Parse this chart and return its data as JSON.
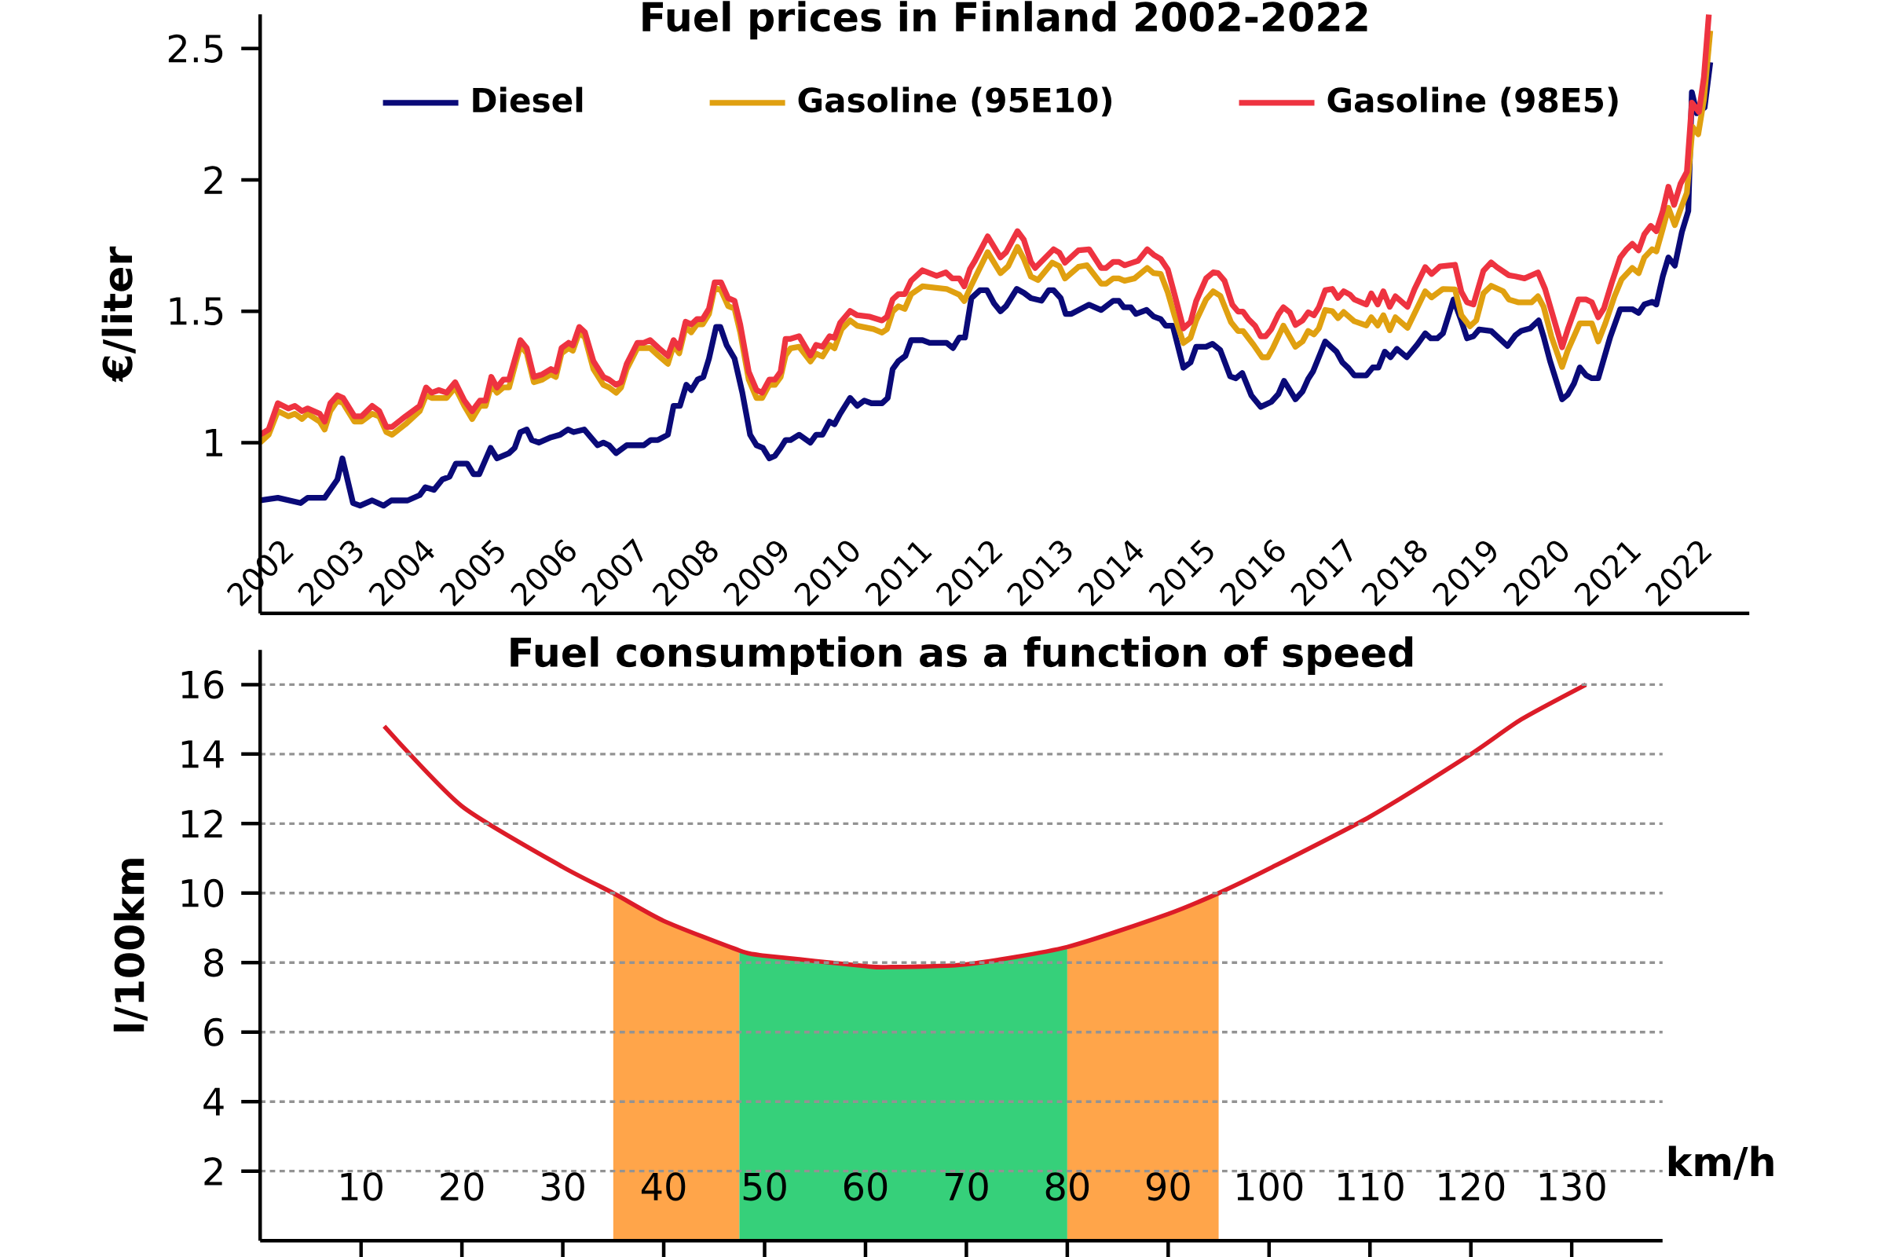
{
  "chart_data": [
    {
      "type": "line",
      "title": "Fuel prices in Finland 2002-2022",
      "ylabel": "€/liter",
      "xlim": [
        2002,
        2023
      ],
      "ylim": [
        0.35,
        2.63
      ],
      "xticks": [
        2002,
        2003,
        2004,
        2005,
        2006,
        2007,
        2008,
        2009,
        2010,
        2011,
        2012,
        2013,
        2014,
        2015,
        2016,
        2017,
        2018,
        2019,
        2020,
        2021,
        2022
      ],
      "yticks": [
        1,
        1.5,
        2,
        2.5
      ],
      "legend": "top",
      "series": [
        {
          "name": "Diesel",
          "color": "#0a0a78",
          "x": [
            2002.0,
            2002.25,
            2002.57,
            2002.67,
            2002.91,
            2003.09,
            2003.16,
            2003.31,
            2003.41,
            2003.58,
            2003.74,
            2003.85,
            2004.08,
            2004.25,
            2004.33,
            2004.45,
            2004.57,
            2004.67,
            2004.76,
            2004.92,
            2005.01,
            2005.09,
            2005.25,
            2005.34,
            2005.51,
            2005.59,
            2005.67,
            2005.76,
            2005.83,
            2005.93,
            2006.1,
            2006.23,
            2006.34,
            2006.42,
            2006.57,
            2006.76,
            2006.84,
            2006.92,
            2007.02,
            2007.17,
            2007.41,
            2007.51,
            2007.61,
            2007.75,
            2007.83,
            2007.92,
            2008.01,
            2008.08,
            2008.17,
            2008.25,
            2008.33,
            2008.43,
            2008.49,
            2008.58,
            2008.69,
            2008.8,
            2008.91,
            2009.0,
            2009.09,
            2009.18,
            2009.26,
            2009.34,
            2009.41,
            2009.48,
            2009.6,
            2009.76,
            2009.84,
            2009.93,
            2010.03,
            2010.1,
            2010.18,
            2010.32,
            2010.42,
            2010.52,
            2010.62,
            2010.77,
            2010.85,
            2010.92,
            2011.0,
            2011.1,
            2011.18,
            2011.34,
            2011.44,
            2011.68,
            2011.77,
            2011.86,
            2011.94,
            2012.03,
            2012.15,
            2012.25,
            2012.35,
            2012.44,
            2012.52,
            2012.67,
            2012.77,
            2012.87,
            2013.02,
            2013.12,
            2013.19,
            2013.29,
            2013.36,
            2013.44,
            2013.69,
            2013.86,
            2014.03,
            2014.11,
            2014.18,
            2014.28,
            2014.35,
            2014.5,
            2014.6,
            2014.7,
            2014.77,
            2014.87,
            2014.95,
            2015.02,
            2015.12,
            2015.2,
            2015.34,
            2015.43,
            2015.54,
            2015.68,
            2015.76,
            2015.85,
            2015.98,
            2016.11,
            2016.26,
            2016.36,
            2016.44,
            2016.6,
            2016.7,
            2016.78,
            2016.85,
            2017.02,
            2017.18,
            2017.26,
            2017.35,
            2017.43,
            2017.6,
            2017.69,
            2017.77,
            2017.86,
            2017.94,
            2018.03,
            2018.17,
            2018.32,
            2018.43,
            2018.51,
            2018.6,
            2018.68,
            2018.83,
            2018.93,
            2019.02,
            2019.11,
            2019.19,
            2019.36,
            2019.59,
            2019.7,
            2019.78,
            2019.91,
            2020.03,
            2020.1,
            2020.19,
            2020.36,
            2020.44,
            2020.53,
            2020.61,
            2020.7,
            2020.78,
            2020.87,
            2021.04,
            2021.18,
            2021.35,
            2021.44,
            2021.52,
            2021.63,
            2021.69,
            2021.78,
            2021.86,
            2021.95,
            2022.05,
            2022.14,
            2022.19,
            2022.26,
            2022.37,
            2022.45
          ],
          "values": [
            0.78,
            0.79,
            0.77,
            0.79,
            0.79,
            0.86,
            0.94,
            0.77,
            0.76,
            0.78,
            0.76,
            0.78,
            0.78,
            0.8,
            0.83,
            0.82,
            0.86,
            0.87,
            0.92,
            0.92,
            0.88,
            0.88,
            0.98,
            0.94,
            0.96,
            0.98,
            1.04,
            1.05,
            1.01,
            1.0,
            1.02,
            1.03,
            1.05,
            1.04,
            1.05,
            0.99,
            1.0,
            0.99,
            0.96,
            0.99,
            0.99,
            1.01,
            1.01,
            1.03,
            1.14,
            1.14,
            1.22,
            1.2,
            1.24,
            1.25,
            1.32,
            1.44,
            1.44,
            1.37,
            1.32,
            1.19,
            1.03,
            0.99,
            0.98,
            0.94,
            0.95,
            0.98,
            1.01,
            1.01,
            1.03,
            1.0,
            1.03,
            1.03,
            1.08,
            1.07,
            1.11,
            1.17,
            1.14,
            1.16,
            1.15,
            1.15,
            1.17,
            1.28,
            1.31,
            1.33,
            1.39,
            1.39,
            1.38,
            1.38,
            1.36,
            1.4,
            1.4,
            1.55,
            1.58,
            1.58,
            1.53,
            1.5,
            1.52,
            1.585,
            1.57,
            1.55,
            1.54,
            1.58,
            1.58,
            1.55,
            1.49,
            1.49,
            1.525,
            1.505,
            1.54,
            1.54,
            1.515,
            1.515,
            1.49,
            1.505,
            1.48,
            1.47,
            1.445,
            1.445,
            1.36,
            1.285,
            1.305,
            1.365,
            1.365,
            1.376,
            1.352,
            1.252,
            1.245,
            1.265,
            1.179,
            1.136,
            1.155,
            1.185,
            1.235,
            1.165,
            1.195,
            1.243,
            1.272,
            1.385,
            1.346,
            1.306,
            1.283,
            1.256,
            1.256,
            1.286,
            1.286,
            1.346,
            1.325,
            1.357,
            1.325,
            1.374,
            1.416,
            1.397,
            1.397,
            1.416,
            1.545,
            1.471,
            1.397,
            1.405,
            1.431,
            1.425,
            1.368,
            1.408,
            1.425,
            1.435,
            1.465,
            1.403,
            1.311,
            1.165,
            1.183,
            1.226,
            1.286,
            1.256,
            1.245,
            1.245,
            1.403,
            1.508,
            1.508,
            1.494,
            1.526,
            1.536,
            1.526,
            1.633,
            1.705,
            1.674,
            1.802,
            1.882,
            2.334,
            2.254,
            2.276,
            2.448
          ]
        },
        {
          "name": "Gasoline (95E10)",
          "color": "#e0a010",
          "x": [
            2002.0,
            2002.12,
            2002.25,
            2002.4,
            2002.49,
            2002.59,
            2002.67,
            2002.84,
            2002.91,
            2002.99,
            2003.09,
            2003.17,
            2003.33,
            2003.43,
            2003.58,
            2003.68,
            2003.78,
            2003.86,
            2004.05,
            2004.25,
            2004.34,
            2004.42,
            2004.52,
            2004.63,
            2004.75,
            2004.88,
            2004.99,
            2005.1,
            2005.18,
            2005.26,
            2005.34,
            2005.43,
            2005.51,
            2005.67,
            2005.76,
            2005.86,
            2005.98,
            2006.1,
            2006.17,
            2006.25,
            2006.35,
            2006.41,
            2006.5,
            2006.58,
            2006.7,
            2006.84,
            2006.92,
            2007.02,
            2007.09,
            2007.17,
            2007.32,
            2007.41,
            2007.5,
            2007.62,
            2007.75,
            2007.83,
            2007.91,
            2008.0,
            2008.08,
            2008.16,
            2008.24,
            2008.33,
            2008.41,
            2008.5,
            2008.6,
            2008.69,
            2008.77,
            2008.89,
            2009.0,
            2009.08,
            2009.18,
            2009.26,
            2009.34,
            2009.41,
            2009.48,
            2009.6,
            2009.76,
            2009.84,
            2009.93,
            2010.03,
            2010.1,
            2010.2,
            2010.32,
            2010.42,
            2010.65,
            2010.77,
            2010.84,
            2010.92,
            2011.0,
            2011.09,
            2011.18,
            2011.34,
            2011.68,
            2011.86,
            2011.93,
            2012.03,
            2012.26,
            2012.44,
            2012.55,
            2012.68,
            2012.77,
            2012.87,
            2012.97,
            2013.17,
            2013.27,
            2013.35,
            2013.54,
            2013.66,
            2013.86,
            2013.93,
            2014.03,
            2014.11,
            2014.19,
            2014.33,
            2014.51,
            2014.6,
            2014.7,
            2014.8,
            2014.9,
            2015.02,
            2015.12,
            2015.2,
            2015.34,
            2015.44,
            2015.54,
            2015.69,
            2015.79,
            2015.86,
            2016.01,
            2016.13,
            2016.21,
            2016.28,
            2016.43,
            2016.6,
            2016.7,
            2016.78,
            2016.86,
            2016.93,
            2017.02,
            2017.12,
            2017.2,
            2017.28,
            2017.43,
            2017.6,
            2017.67,
            2017.76,
            2017.84,
            2017.93,
            2018.01,
            2018.18,
            2018.43,
            2018.52,
            2018.68,
            2018.85,
            2018.94,
            2019.06,
            2019.15,
            2019.25,
            2019.36,
            2019.53,
            2019.61,
            2019.74,
            2019.93,
            2020.02,
            2020.1,
            2020.21,
            2020.36,
            2020.44,
            2020.61,
            2020.78,
            2020.87,
            2020.97,
            2021.1,
            2021.2,
            2021.35,
            2021.44,
            2021.52,
            2021.63,
            2021.69,
            2021.78,
            2021.86,
            2021.95,
            2022.03,
            2022.12,
            2022.2,
            2022.28,
            2022.36,
            2022.45
          ],
          "values": [
            1.0,
            1.03,
            1.12,
            1.1,
            1.11,
            1.09,
            1.11,
            1.08,
            1.05,
            1.12,
            1.16,
            1.15,
            1.08,
            1.08,
            1.11,
            1.1,
            1.04,
            1.03,
            1.07,
            1.12,
            1.18,
            1.17,
            1.17,
            1.17,
            1.21,
            1.14,
            1.09,
            1.14,
            1.14,
            1.22,
            1.19,
            1.21,
            1.21,
            1.37,
            1.34,
            1.23,
            1.24,
            1.26,
            1.25,
            1.34,
            1.36,
            1.35,
            1.42,
            1.4,
            1.28,
            1.22,
            1.21,
            1.19,
            1.21,
            1.28,
            1.36,
            1.36,
            1.36,
            1.33,
            1.3,
            1.37,
            1.34,
            1.44,
            1.42,
            1.45,
            1.45,
            1.49,
            1.59,
            1.58,
            1.52,
            1.51,
            1.42,
            1.24,
            1.17,
            1.17,
            1.22,
            1.22,
            1.25,
            1.332,
            1.359,
            1.365,
            1.309,
            1.339,
            1.328,
            1.372,
            1.359,
            1.432,
            1.465,
            1.445,
            1.432,
            1.419,
            1.432,
            1.499,
            1.519,
            1.509,
            1.565,
            1.595,
            1.585,
            1.563,
            1.539,
            1.599,
            1.725,
            1.645,
            1.672,
            1.745,
            1.699,
            1.632,
            1.619,
            1.685,
            1.672,
            1.625,
            1.669,
            1.675,
            1.605,
            1.605,
            1.625,
            1.625,
            1.616,
            1.625,
            1.665,
            1.645,
            1.642,
            1.572,
            1.479,
            1.379,
            1.399,
            1.465,
            1.545,
            1.576,
            1.559,
            1.459,
            1.425,
            1.425,
            1.372,
            1.325,
            1.325,
            1.359,
            1.445,
            1.365,
            1.385,
            1.425,
            1.412,
            1.435,
            1.505,
            1.5,
            1.474,
            1.497,
            1.462,
            1.446,
            1.477,
            1.446,
            1.485,
            1.428,
            1.477,
            1.437,
            1.576,
            1.553,
            1.585,
            1.583,
            1.485,
            1.443,
            1.465,
            1.568,
            1.597,
            1.576,
            1.545,
            1.534,
            1.534,
            1.557,
            1.517,
            1.403,
            1.288,
            1.351,
            1.454,
            1.454,
            1.385,
            1.454,
            1.557,
            1.622,
            1.665,
            1.645,
            1.705,
            1.736,
            1.728,
            1.814,
            1.894,
            1.828,
            1.888,
            1.951,
            2.202,
            2.174,
            2.305,
            2.568
          ]
        },
        {
          "name": "Gasoline (98E5)",
          "color": "#ee3340",
          "x": [
            2002.0,
            2002.12,
            2002.25,
            2002.4,
            2002.49,
            2002.59,
            2002.67,
            2002.84,
            2002.91,
            2002.99,
            2003.09,
            2003.17,
            2003.33,
            2003.43,
            2003.58,
            2003.68,
            2003.78,
            2003.86,
            2004.05,
            2004.25,
            2004.34,
            2004.42,
            2004.52,
            2004.63,
            2004.75,
            2004.88,
            2004.99,
            2005.1,
            2005.18,
            2005.26,
            2005.34,
            2005.43,
            2005.51,
            2005.67,
            2005.76,
            2005.86,
            2005.98,
            2006.1,
            2006.17,
            2006.25,
            2006.35,
            2006.41,
            2006.5,
            2006.58,
            2006.7,
            2006.84,
            2006.92,
            2007.02,
            2007.09,
            2007.17,
            2007.32,
            2007.41,
            2007.5,
            2007.62,
            2007.75,
            2007.83,
            2007.91,
            2008.0,
            2008.08,
            2008.16,
            2008.24,
            2008.33,
            2008.41,
            2008.5,
            2008.6,
            2008.69,
            2008.77,
            2008.89,
            2009.0,
            2009.08,
            2009.18,
            2009.26,
            2009.34,
            2009.41,
            2009.48,
            2009.6,
            2009.76,
            2009.84,
            2009.93,
            2010.03,
            2010.1,
            2010.18,
            2010.32,
            2010.42,
            2010.6,
            2010.77,
            2010.84,
            2010.92,
            2011.0,
            2011.09,
            2011.18,
            2011.34,
            2011.54,
            2011.67,
            2011.76,
            2011.86,
            2011.93,
            2012.01,
            2012.08,
            2012.26,
            2012.44,
            2012.52,
            2012.68,
            2012.77,
            2012.87,
            2012.93,
            2013.19,
            2013.27,
            2013.35,
            2013.54,
            2013.69,
            2013.86,
            2013.93,
            2014.03,
            2014.11,
            2014.19,
            2014.3,
            2014.38,
            2014.51,
            2014.6,
            2014.7,
            2014.8,
            2014.9,
            2015.02,
            2015.12,
            2015.2,
            2015.34,
            2015.44,
            2015.51,
            2015.6,
            2015.71,
            2015.79,
            2015.86,
            2015.94,
            2016.03,
            2016.11,
            2016.18,
            2016.26,
            2016.36,
            2016.43,
            2016.52,
            2016.6,
            2016.7,
            2016.78,
            2016.86,
            2016.93,
            2017.02,
            2017.12,
            2017.2,
            2017.28,
            2017.37,
            2017.43,
            2017.6,
            2017.67,
            2017.76,
            2017.84,
            2017.93,
            2018.01,
            2018.18,
            2018.28,
            2018.43,
            2018.52,
            2018.64,
            2018.85,
            2018.94,
            2019.02,
            2019.11,
            2019.25,
            2019.36,
            2019.44,
            2019.61,
            2019.7,
            2019.83,
            2020.02,
            2020.12,
            2020.36,
            2020.44,
            2020.59,
            2020.7,
            2020.78,
            2020.87,
            2020.95,
            2021.06,
            2021.18,
            2021.27,
            2021.35,
            2021.44,
            2021.52,
            2021.61,
            2021.69,
            2021.78,
            2021.86,
            2021.94,
            2022.03,
            2022.12,
            2022.19,
            2022.29,
            2022.36,
            2022.43
          ],
          "values": [
            1.03,
            1.05,
            1.15,
            1.13,
            1.14,
            1.12,
            1.13,
            1.11,
            1.08,
            1.15,
            1.18,
            1.17,
            1.1,
            1.1,
            1.14,
            1.12,
            1.06,
            1.06,
            1.1,
            1.14,
            1.21,
            1.19,
            1.2,
            1.19,
            1.23,
            1.16,
            1.12,
            1.16,
            1.16,
            1.25,
            1.21,
            1.24,
            1.24,
            1.39,
            1.36,
            1.25,
            1.26,
            1.28,
            1.27,
            1.36,
            1.38,
            1.37,
            1.44,
            1.42,
            1.31,
            1.25,
            1.24,
            1.22,
            1.23,
            1.3,
            1.38,
            1.38,
            1.39,
            1.36,
            1.33,
            1.39,
            1.36,
            1.46,
            1.45,
            1.47,
            1.47,
            1.51,
            1.61,
            1.61,
            1.55,
            1.54,
            1.45,
            1.27,
            1.2,
            1.19,
            1.24,
            1.24,
            1.27,
            1.395,
            1.395,
            1.405,
            1.332,
            1.372,
            1.365,
            1.405,
            1.399,
            1.456,
            1.501,
            1.485,
            1.479,
            1.465,
            1.479,
            1.545,
            1.565,
            1.565,
            1.616,
            1.656,
            1.635,
            1.648,
            1.625,
            1.625,
            1.595,
            1.661,
            1.692,
            1.785,
            1.705,
            1.725,
            1.805,
            1.772,
            1.688,
            1.665,
            1.736,
            1.723,
            1.685,
            1.732,
            1.736,
            1.665,
            1.665,
            1.688,
            1.688,
            1.675,
            1.685,
            1.692,
            1.736,
            1.715,
            1.699,
            1.659,
            1.559,
            1.435,
            1.459,
            1.539,
            1.625,
            1.648,
            1.645,
            1.616,
            1.525,
            1.499,
            1.499,
            1.469,
            1.445,
            1.405,
            1.405,
            1.432,
            1.488,
            1.515,
            1.496,
            1.448,
            1.465,
            1.496,
            1.485,
            1.515,
            1.58,
            1.585,
            1.551,
            1.576,
            1.563,
            1.545,
            1.526,
            1.568,
            1.526,
            1.576,
            1.517,
            1.557,
            1.517,
            1.585,
            1.668,
            1.642,
            1.671,
            1.677,
            1.574,
            1.534,
            1.526,
            1.654,
            1.686,
            1.668,
            1.637,
            1.633,
            1.625,
            1.648,
            1.585,
            1.363,
            1.431,
            1.545,
            1.545,
            1.534,
            1.477,
            1.511,
            1.608,
            1.705,
            1.736,
            1.757,
            1.732,
            1.793,
            1.825,
            1.805,
            1.882,
            1.974,
            1.905,
            1.985,
            2.031,
            2.294,
            2.259,
            2.391,
            2.63
          ]
        }
      ]
    },
    {
      "type": "line",
      "title": "Fuel consumption as a function of speed",
      "xlabel": "km/h",
      "ylabel": "l/100km",
      "xlim": [
        0,
        139
      ],
      "ylim": [
        0,
        17
      ],
      "xticks": [
        10,
        20,
        30,
        40,
        50,
        60,
        70,
        80,
        90,
        100,
        110,
        120,
        130
      ],
      "yticks": [
        2,
        4,
        6,
        8,
        10,
        12,
        14,
        16
      ],
      "grid": "y",
      "series": [
        {
          "type": "area",
          "color": "#ffa54a",
          "x": [
            35,
            40,
            47.5
          ],
          "values": [
            10.0,
            9.2,
            8.35
          ]
        },
        {
          "type": "area",
          "color": "#36d07a",
          "x": [
            47.5,
            50,
            60,
            62,
            70,
            80
          ],
          "values": [
            8.35,
            8.2,
            7.9,
            7.87,
            7.95,
            8.45
          ]
        },
        {
          "type": "area",
          "color": "#ffa54a",
          "x": [
            80,
            90,
            95
          ],
          "values": [
            8.45,
            9.4,
            10.0
          ]
        },
        {
          "color": "#dc1c28",
          "x": [
            12.3,
            20,
            30,
            35,
            40,
            47.5,
            50,
            60,
            62,
            70,
            80,
            90,
            95,
            100,
            110,
            120,
            125,
            131.4
          ],
          "values": [
            14.8,
            12.5,
            10.75,
            10.0,
            9.2,
            8.35,
            8.2,
            7.9,
            7.87,
            7.95,
            8.45,
            9.4,
            10.0,
            10.7,
            12.2,
            14.0,
            15.0,
            16.0
          ]
        }
      ]
    }
  ]
}
